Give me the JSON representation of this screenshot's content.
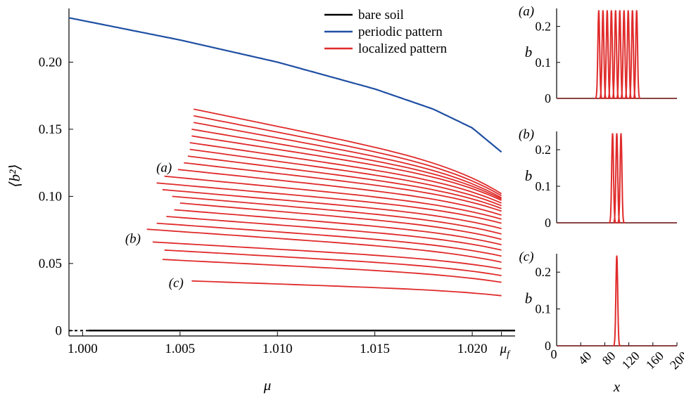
{
  "chart_data": [
    {
      "type": "line",
      "xlabel": "μ",
      "ylabel": "⟨b²⟩",
      "xlim": [
        0.9993,
        1.0222
      ],
      "ylim": [
        -0.004,
        0.24
      ],
      "x_ticks": [
        {
          "value": 1.0,
          "label": "1.000"
        },
        {
          "value": 1.005,
          "label": "1.005"
        },
        {
          "value": 1.01,
          "label": "1.010"
        },
        {
          "value": 1.015,
          "label": "1.015"
        },
        {
          "value": 1.02,
          "label": "1.020"
        }
      ],
      "x_extra_tick": {
        "value": 1.0215,
        "label": "μ",
        "sub": "f"
      },
      "y_ticks": [
        {
          "value": 0,
          "label": "0"
        },
        {
          "value": 0.05,
          "label": "0.05"
        },
        {
          "value": 0.1,
          "label": "0.10"
        },
        {
          "value": 0.15,
          "label": "0.15"
        },
        {
          "value": 0.2,
          "label": "0.20"
        }
      ],
      "legend_position": "top-right",
      "series": [
        {
          "name": "bare soil",
          "color": "#000000",
          "kind": "constant",
          "y": 0,
          "x_start": 0.9993,
          "x_end": 1.0222,
          "dashed_to": 1.0003
        },
        {
          "name": "periodic pattern",
          "color": "#1f4fa3",
          "kind": "curve",
          "x": [
            0.9993,
            1.0,
            1.005,
            1.01,
            1.015,
            1.018,
            1.02,
            1.0215
          ],
          "y": [
            0.233,
            0.231,
            0.2165,
            0.2,
            0.18,
            0.165,
            0.151,
            0.133
          ]
        },
        {
          "name": "localized pattern",
          "color": "#e02b2b",
          "kind": "family",
          "x_end": 1.0215,
          "branches": [
            {
              "x0": 1.0056,
              "y0": 0.037,
              "y1": 0.026
            },
            {
              "x0": 1.0041,
              "y0": 0.053,
              "y1": 0.036
            },
            {
              "x0": 1.0042,
              "y0": 0.06,
              "y1": 0.041
            },
            {
              "x0": 1.0036,
              "y0": 0.066,
              "y1": 0.046
            },
            {
              "x0": 1.0033,
              "y0": 0.0755,
              "y1": 0.051
            },
            {
              "x0": 1.0038,
              "y0": 0.08,
              "y1": 0.0555
            },
            {
              "x0": 1.0043,
              "y0": 0.085,
              "y1": 0.06
            },
            {
              "x0": 1.0047,
              "y0": 0.09,
              "y1": 0.064
            },
            {
              "x0": 1.005,
              "y0": 0.095,
              "y1": 0.068
            },
            {
              "x0": 1.0046,
              "y0": 0.1,
              "y1": 0.072
            },
            {
              "x0": 1.0041,
              "y0": 0.105,
              "y1": 0.076
            },
            {
              "x0": 1.0038,
              "y0": 0.11,
              "y1": 0.08
            },
            {
              "x0": 1.0042,
              "y0": 0.115,
              "y1": 0.083
            },
            {
              "x0": 1.0049,
              "y0": 0.12,
              "y1": 0.086
            },
            {
              "x0": 1.0052,
              "y0": 0.125,
              "y1": 0.089
            },
            {
              "x0": 1.0054,
              "y0": 0.13,
              "y1": 0.091
            },
            {
              "x0": 1.0055,
              "y0": 0.135,
              "y1": 0.093
            },
            {
              "x0": 1.0055,
              "y0": 0.14,
              "y1": 0.095
            },
            {
              "x0": 1.0056,
              "y0": 0.145,
              "y1": 0.097
            },
            {
              "x0": 1.0056,
              "y0": 0.15,
              "y1": 0.098
            },
            {
              "x0": 1.0057,
              "y0": 0.155,
              "y1": 0.099
            },
            {
              "x0": 1.0057,
              "y0": 0.16,
              "y1": 0.1005
            },
            {
              "x0": 1.0057,
              "y0": 0.165,
              "y1": 0.102
            }
          ]
        }
      ],
      "annotations": [
        {
          "text": "(a)",
          "x": 1.0048,
          "y": 0.1215
        },
        {
          "text": "(b)",
          "x": 1.0032,
          "y": 0.0685
        },
        {
          "text": "(c)",
          "x": 1.0054,
          "y": 0.0355
        }
      ]
    },
    {
      "type": "line",
      "panel_label": "(a)",
      "ylabel": "b",
      "xlim": [
        0,
        200
      ],
      "ylim": [
        0,
        0.25
      ],
      "y_ticks": [
        {
          "value": 0,
          "label": "0"
        },
        {
          "value": 0.1,
          "label": "0.1"
        },
        {
          "value": 0.2,
          "label": "0.2"
        }
      ],
      "series": [
        {
          "color": "#e02b2b",
          "shape": "spikes",
          "peak_value": 0.245,
          "centers": [
            70,
            77,
            84,
            91,
            98,
            105,
            112,
            119,
            126,
            133
          ],
          "width": 2.4
        }
      ]
    },
    {
      "type": "line",
      "panel_label": "(b)",
      "ylabel": "b",
      "xlim": [
        0,
        200
      ],
      "ylim": [
        0,
        0.25
      ],
      "y_ticks": [
        {
          "value": 0,
          "label": "0"
        },
        {
          "value": 0.1,
          "label": "0.1"
        },
        {
          "value": 0.2,
          "label": "0.2"
        }
      ],
      "series": [
        {
          "color": "#e02b2b",
          "shape": "spikes",
          "peak_value": 0.245,
          "centers": [
            93,
            100,
            107
          ],
          "width": 2.4
        }
      ]
    },
    {
      "type": "line",
      "panel_label": "(c)",
      "ylabel": "b",
      "xlabel": "x",
      "xlim": [
        0,
        200
      ],
      "ylim": [
        0,
        0.25
      ],
      "x_ticks": [
        {
          "value": 0,
          "label": "0"
        },
        {
          "value": 40,
          "label": "40"
        },
        {
          "value": 80,
          "label": "80"
        },
        {
          "value": 120,
          "label": "120"
        },
        {
          "value": 160,
          "label": "160"
        },
        {
          "value": 200,
          "label": "200"
        }
      ],
      "y_ticks": [
        {
          "value": 0,
          "label": "0"
        },
        {
          "value": 0.1,
          "label": "0.1"
        },
        {
          "value": 0.2,
          "label": "0.2"
        }
      ],
      "series": [
        {
          "color": "#e02b2b",
          "shape": "spikes",
          "peak_value": 0.245,
          "centers": [
            100
          ],
          "width": 2.4
        }
      ]
    }
  ]
}
